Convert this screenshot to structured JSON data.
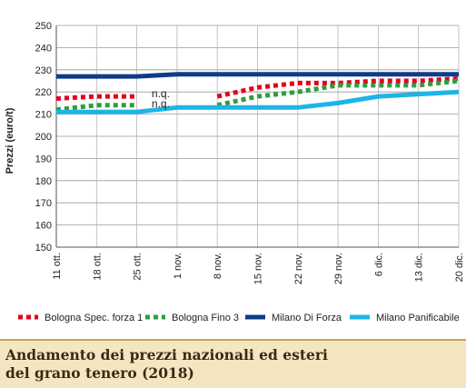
{
  "caption": {
    "line1": "Andamento dei prezzi nazionali ed esteri",
    "line2": "del grano tenero (2018)"
  },
  "chart_data": {
    "type": "line",
    "ylabel": "Prezzi (euro/t)",
    "xlabel": "",
    "ylim": [
      150,
      250
    ],
    "yticks": [
      150,
      160,
      170,
      180,
      190,
      200,
      210,
      220,
      230,
      240,
      250
    ],
    "grid": true,
    "legend_position": "bottom",
    "categories": [
      "11 ott.",
      "18 ott.",
      "25 ott.",
      "1 nov.",
      "8 nov.",
      "15 nov.",
      "22 nov.",
      "29 nov.",
      "6 dic.",
      "13 dic.",
      "20 dic."
    ],
    "annotations": [
      "n.q.",
      "n.q."
    ],
    "series": [
      {
        "name": "Bologna Spec. forza 1",
        "color": "#e3001b",
        "style": "dotted",
        "values": [
          217,
          218,
          218,
          null,
          218,
          222,
          224,
          224,
          225,
          225,
          226
        ]
      },
      {
        "name": "Bologna Fino 3",
        "color": "#2e9e3c",
        "style": "dotted",
        "values": [
          212,
          214,
          214,
          null,
          214,
          218,
          220,
          223,
          223,
          223,
          225
        ]
      },
      {
        "name": "Milano Di Forza",
        "color": "#0f3c88",
        "style": "solid",
        "values": [
          227,
          227,
          227,
          228,
          228,
          228,
          228,
          228,
          228,
          228,
          228
        ]
      },
      {
        "name": "Milano Panificabile",
        "color": "#1eb4e6",
        "style": "solid",
        "values": [
          211,
          211,
          211,
          213,
          213,
          213,
          213,
          215,
          218,
          219,
          220
        ]
      }
    ]
  }
}
